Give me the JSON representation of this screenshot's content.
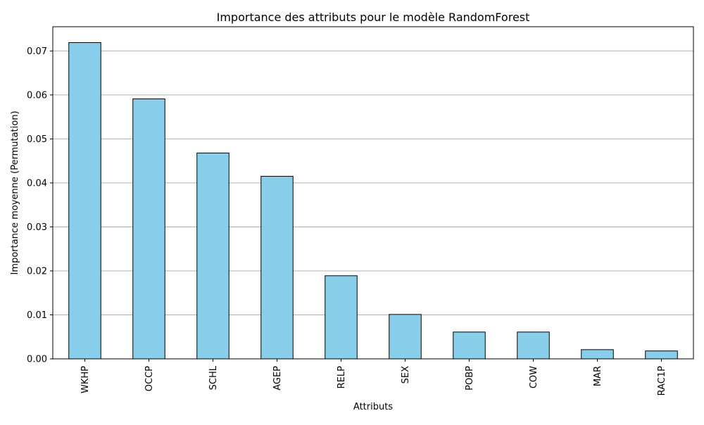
{
  "chart_data": {
    "type": "bar",
    "title": "Importance des attributs pour le modèle RandomForest",
    "xlabel": "Attributs",
    "ylabel": "Importance moyenne (Permutation)",
    "categories": [
      "WKHP",
      "OCCP",
      "SCHL",
      "AGEP",
      "RELP",
      "SEX",
      "POBP",
      "COW",
      "MAR",
      "RAC1P"
    ],
    "values": [
      0.0719,
      0.0591,
      0.0468,
      0.0415,
      0.0189,
      0.0101,
      0.0061,
      0.0061,
      0.0021,
      0.0018
    ],
    "ylim": [
      0,
      0.0755
    ],
    "yticks": [
      0.0,
      0.01,
      0.02,
      0.03,
      0.04,
      0.05,
      0.06,
      0.07
    ],
    "ytick_labels": [
      "0.00",
      "0.01",
      "0.02",
      "0.03",
      "0.04",
      "0.05",
      "0.06",
      "0.07"
    ],
    "grid": "y",
    "colors": {
      "bar_fill": "#87CEEB",
      "bar_edge": "#000000",
      "grid": "#b0b0b0"
    }
  }
}
